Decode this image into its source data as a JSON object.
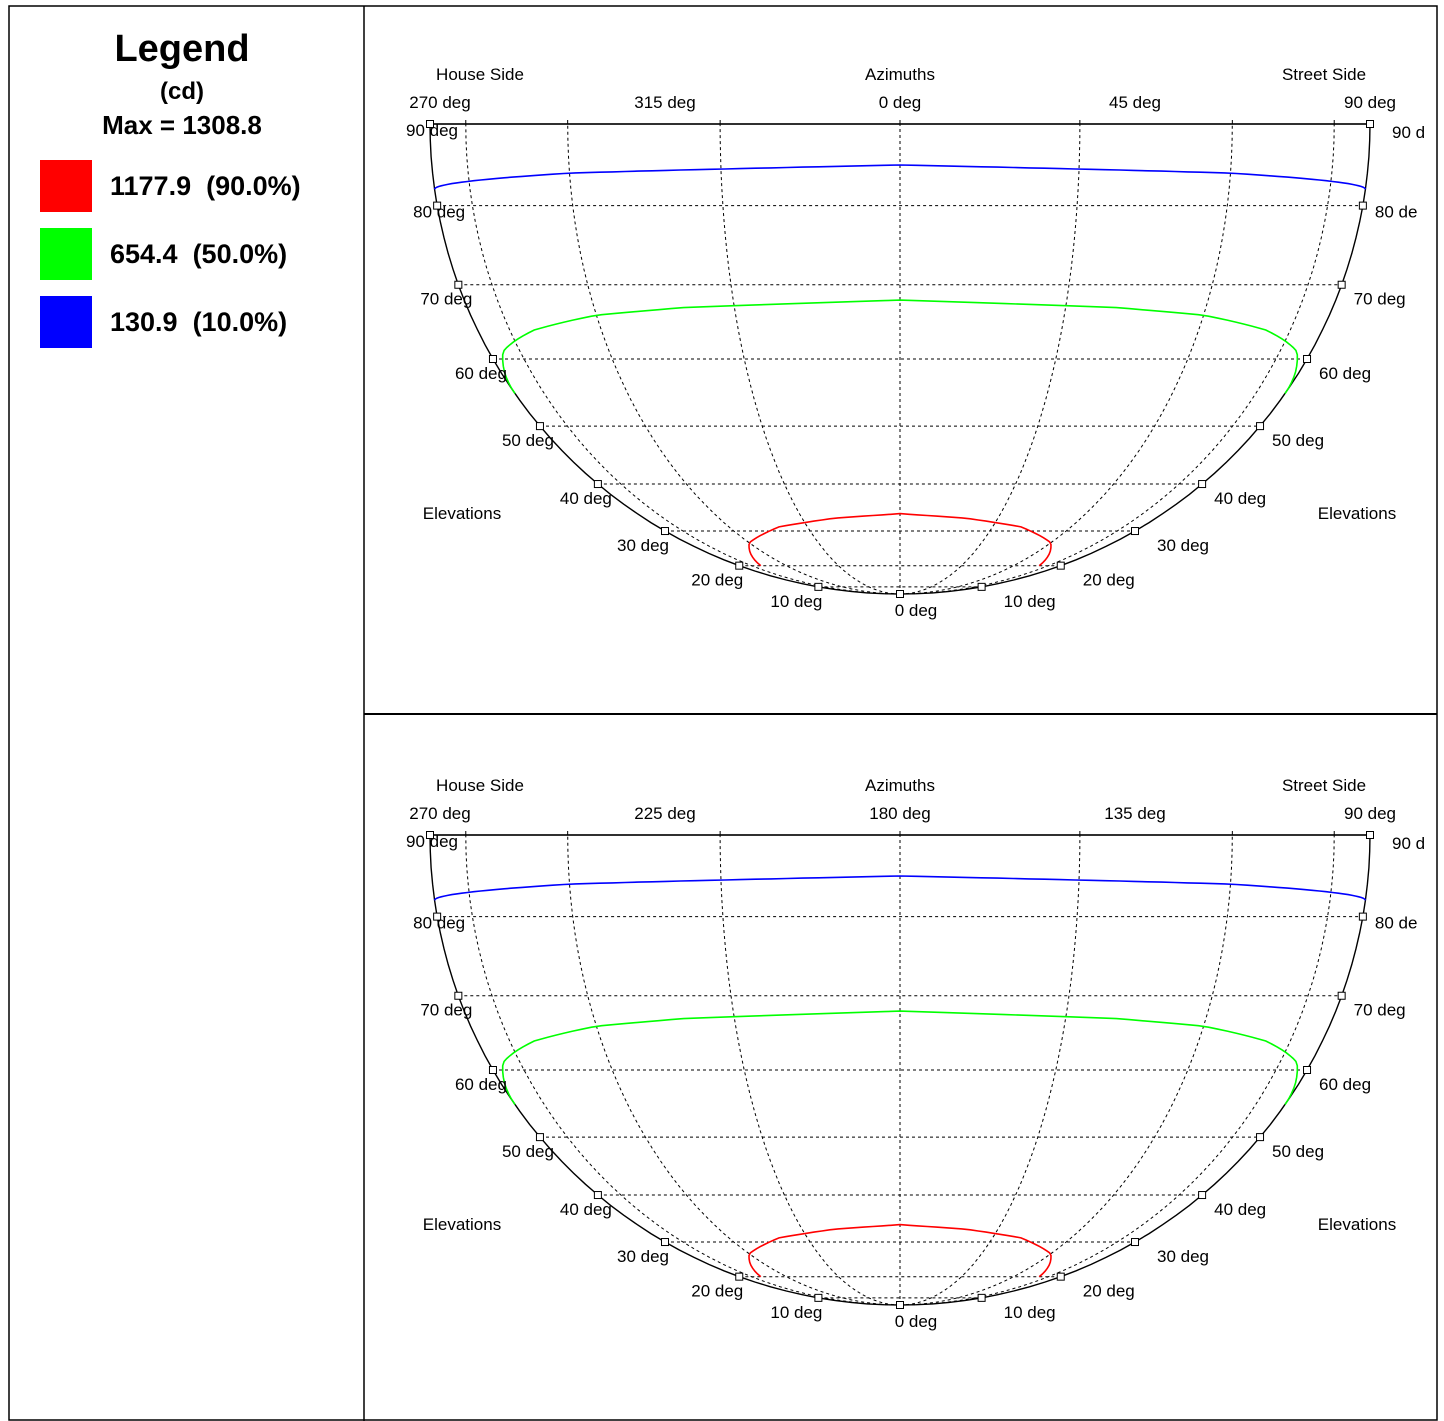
{
  "legend": {
    "title": "Legend",
    "unit": "(cd)",
    "max_label": "Max = 1308.8",
    "items": [
      {
        "label": "1177.9  (90.0%)",
        "color": "#ff0000",
        "value": 1177.9,
        "percent": 90.0
      },
      {
        "label": "654.4  (50.0%)",
        "color": "#00ff00",
        "value": 654.4,
        "percent": 50.0
      },
      {
        "label": "130.9  (10.0%)",
        "color": "#0000ff",
        "value": 130.9,
        "percent": 10.0
      }
    ]
  },
  "chart_data": [
    {
      "type": "line",
      "header_left": "House Side",
      "header_center": "Azimuths",
      "header_right": "Street Side",
      "azimuth_ticks": [
        "270 deg",
        "315 deg",
        "0 deg",
        "45 deg",
        "90 deg"
      ],
      "azimuth_right_edge": "90 d",
      "side_label": "Elevations",
      "elevation_ticks_left": [
        "90 deg",
        "80 deg",
        "70 deg",
        "60 deg",
        "50 deg",
        "40 deg",
        "30 deg",
        "20 deg",
        "10 deg"
      ],
      "elevation_ticks_right": [
        "80 de",
        "70 deg",
        "60 deg",
        "50 deg",
        "40 deg",
        "30 deg",
        "20 deg",
        "10 deg"
      ],
      "center_tick": "0 deg",
      "grid": true,
      "series": [
        {
          "name": "1177.9  (90.0%)",
          "color": "#ff0000",
          "elevation_at_azimuth": [
            [
              -90,
              null
            ],
            [
              -60,
              20
            ],
            [
              -45,
              27
            ],
            [
              -30,
              31
            ],
            [
              -15,
              33
            ],
            [
              0,
              34
            ],
            [
              15,
              33
            ],
            [
              30,
              31
            ],
            [
              45,
              27
            ],
            [
              60,
              20
            ],
            [
              90,
              null
            ]
          ]
        },
        {
          "name": "654.4  (50.0%)",
          "color": "#00ff00",
          "elevation_at_azimuth": [
            [
              -90,
              55
            ],
            [
              -75,
              61
            ],
            [
              -60,
              64
            ],
            [
              -45,
              66
            ],
            [
              -30,
              67
            ],
            [
              -15,
              67.5
            ],
            [
              0,
              68
            ],
            [
              15,
              67.5
            ],
            [
              30,
              67
            ],
            [
              45,
              66
            ],
            [
              60,
              64
            ],
            [
              75,
              61
            ],
            [
              90,
              55
            ]
          ]
        },
        {
          "name": "130.9  (10.0%)",
          "color": "#0000ff",
          "elevation_at_azimuth": [
            [
              -90,
              82
            ],
            [
              -45,
              84
            ],
            [
              0,
              85
            ],
            [
              45,
              84
            ],
            [
              90,
              82
            ]
          ]
        }
      ]
    },
    {
      "type": "line",
      "header_left": "House Side",
      "header_center": "Azimuths",
      "header_right": "Street Side",
      "azimuth_ticks": [
        "270 deg",
        "225 deg",
        "180 deg",
        "135 deg",
        "90 deg"
      ],
      "azimuth_right_edge": "90 d",
      "side_label": "Elevations",
      "elevation_ticks_left": [
        "90 deg",
        "80 deg",
        "70 deg",
        "60 deg",
        "50 deg",
        "40 deg",
        "30 deg",
        "20 deg",
        "10 deg"
      ],
      "elevation_ticks_right": [
        "80 de",
        "70 deg",
        "60 deg",
        "50 deg",
        "40 deg",
        "30 deg",
        "20 deg",
        "10 deg"
      ],
      "center_tick": "0 deg",
      "grid": true,
      "series": [
        {
          "name": "1177.9  (90.0%)",
          "color": "#ff0000",
          "elevation_at_azimuth": [
            [
              -90,
              null
            ],
            [
              -60,
              20
            ],
            [
              -45,
              27
            ],
            [
              -30,
              31
            ],
            [
              -15,
              33
            ],
            [
              0,
              34
            ],
            [
              15,
              33
            ],
            [
              30,
              31
            ],
            [
              45,
              27
            ],
            [
              60,
              20
            ],
            [
              90,
              null
            ]
          ]
        },
        {
          "name": "654.4  (50.0%)",
          "color": "#00ff00",
          "elevation_at_azimuth": [
            [
              -90,
              55
            ],
            [
              -75,
              61
            ],
            [
              -60,
              64
            ],
            [
              -45,
              66
            ],
            [
              -30,
              67
            ],
            [
              -15,
              67.5
            ],
            [
              0,
              68
            ],
            [
              15,
              67.5
            ],
            [
              30,
              67
            ],
            [
              45,
              66
            ],
            [
              60,
              64
            ],
            [
              75,
              61
            ],
            [
              90,
              55
            ]
          ]
        },
        {
          "name": "130.9  (10.0%)",
          "color": "#0000ff",
          "elevation_at_azimuth": [
            [
              -90,
              82
            ],
            [
              -45,
              84
            ],
            [
              0,
              85
            ],
            [
              45,
              84
            ],
            [
              90,
              82
            ]
          ]
        }
      ]
    }
  ]
}
